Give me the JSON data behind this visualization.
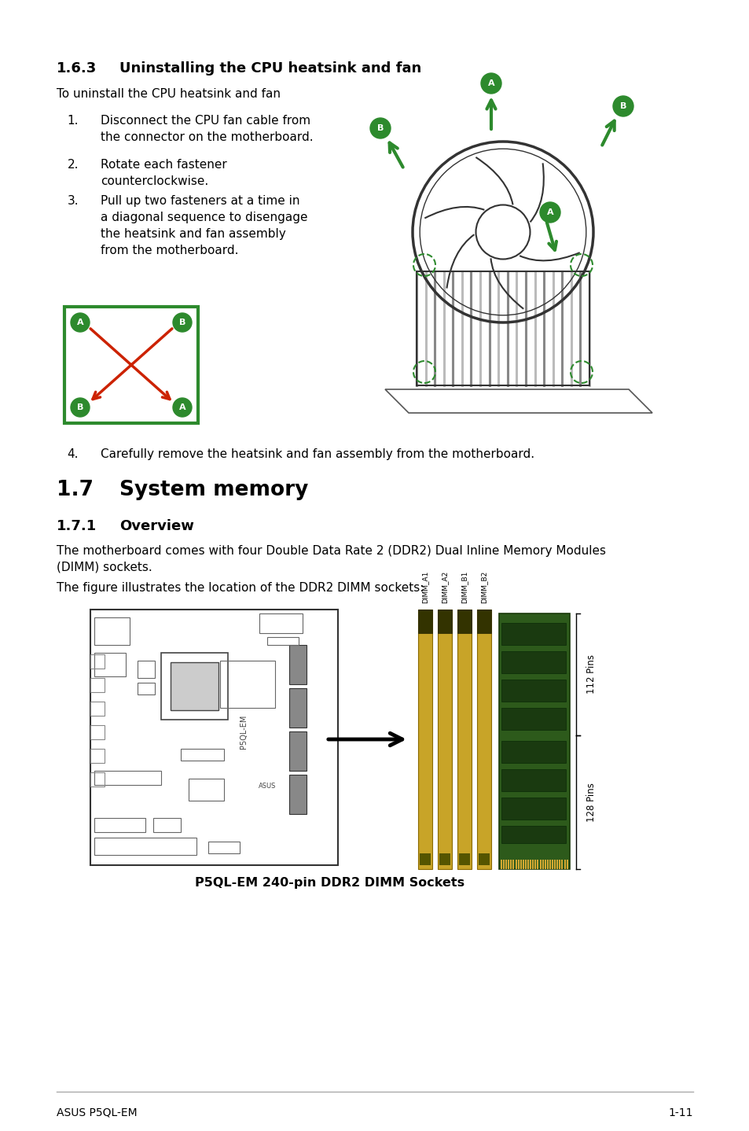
{
  "bg_color": "#ffffff",
  "text_color": "#000000",
  "green_color": "#2d8a2d",
  "red_color": "#cc2200",
  "footer_line_color": "#aaaaaa",
  "title_163": "1.6.3",
  "title_163b": "Uninstalling the CPU heatsink and fan",
  "subtitle_163": "To uninstall the CPU heatsink and fan",
  "step1_num": "1.",
  "step1_text": "Disconnect the CPU fan cable from\nthe connector on the motherboard.",
  "step2_num": "2.",
  "step2_text": "Rotate each fastener\ncounterclockwise.",
  "step3_num": "3.",
  "step3_text": "Pull up two fasteners at a time in\na diagonal sequence to disengage\nthe heatsink and fan assembly\nfrom the motherboard.",
  "step4_num": "4.",
  "step4_text": "Carefully remove the heatsink and fan assembly from the motherboard.",
  "title_17": "1.7",
  "title_17b": "System memory",
  "title_171": "1.7.1",
  "title_171b": "Overview",
  "para_171_1": "The motherboard comes with four Double Data Rate 2 (DDR2) Dual Inline Memory Modules\n(DIMM) sockets.",
  "para_171_2": "The figure illustrates the location of the DDR2 DIMM sockets:",
  "caption": "P5QL-EM 240-pin DDR2 DIMM Sockets",
  "footer_left": "ASUS P5QL-EM",
  "footer_right": "1-11",
  "lm": 72,
  "rm": 882,
  "num_col": 100,
  "text_col": 128
}
